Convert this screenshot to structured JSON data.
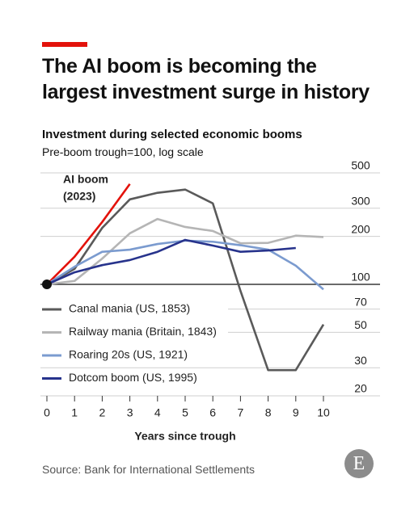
{
  "chart_data": {
    "type": "line",
    "title": "The AI boom is becoming the largest investment surge in history",
    "subtitle": "Investment during selected economic booms",
    "note": "Pre-boom trough=100, log scale",
    "source": "Source: Bank for International Settlements",
    "logo": "E",
    "x_label": "Years since trough",
    "x": [
      0,
      1,
      2,
      3,
      4,
      5,
      6,
      7,
      8,
      9,
      10
    ],
    "xlim": [
      0,
      10
    ],
    "xticks": [
      0,
      1,
      2,
      3,
      4,
      5,
      6,
      7,
      8,
      9,
      10
    ],
    "ylim": [
      20,
      500
    ],
    "yticks": [
      20,
      30,
      50,
      70,
      100,
      200,
      300,
      500
    ],
    "log_scale": true,
    "grid": true,
    "baseline": 100,
    "legend": "lower left",
    "annotation": [
      "AI boom",
      "(2023)"
    ],
    "series": [
      {
        "name": "AI boom",
        "color": "#e3120b",
        "values": [
          100,
          149,
          246,
          426,
          null,
          null,
          null,
          null,
          null,
          null,
          null
        ],
        "in_legend": false
      },
      {
        "name": "Canal mania (US, 1853)",
        "color": "#5a5a5a",
        "values": [
          100,
          125,
          226,
          341,
          375,
          393,
          322,
          91,
          29,
          29,
          56
        ]
      },
      {
        "name": "Railway mania (Britain, 1843)",
        "color": "#b5b5b5",
        "values": [
          100,
          105,
          145,
          209,
          257,
          229,
          216,
          181,
          182,
          202,
          198
        ]
      },
      {
        "name": "Roaring 20s (US, 1921)",
        "color": "#7b9bcf",
        "values": [
          100,
          129,
          160,
          165,
          179,
          188,
          185,
          176,
          165,
          131,
          93
        ]
      },
      {
        "name": "Dotcom boom (US, 1995)",
        "color": "#27338c",
        "values": [
          100,
          119,
          132,
          142,
          160,
          190,
          175,
          160,
          163,
          169,
          null
        ]
      }
    ]
  }
}
